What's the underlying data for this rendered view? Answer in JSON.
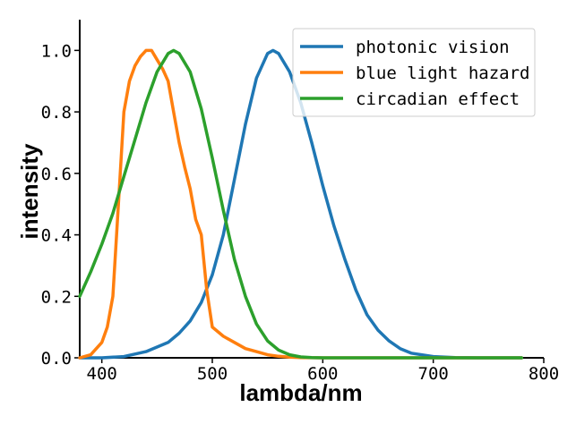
{
  "chart_data": {
    "type": "line",
    "xlabel": "lambda/nm",
    "ylabel": "intensity",
    "xlim": [
      380,
      800
    ],
    "ylim": [
      0,
      1.1
    ],
    "xticks": [
      400,
      500,
      600,
      700,
      800
    ],
    "yticks": [
      0.0,
      0.2,
      0.4,
      0.6,
      0.8,
      1.0
    ],
    "xtick_labels": [
      "400",
      "500",
      "600",
      "700",
      "800"
    ],
    "ytick_labels": [
      "0.0",
      "0.2",
      "0.4",
      "0.6",
      "0.8",
      "1.0"
    ],
    "grid": false,
    "legend_position": "top-right",
    "series": [
      {
        "name": "photonic vision",
        "color": "#1f77b4",
        "x": [
          380,
          400,
          420,
          440,
          460,
          470,
          480,
          490,
          500,
          510,
          520,
          530,
          540,
          550,
          555,
          560,
          570,
          580,
          590,
          600,
          610,
          620,
          630,
          640,
          650,
          660,
          670,
          680,
          700,
          720,
          740,
          760,
          780
        ],
        "y": [
          0.0,
          0.0,
          0.004,
          0.02,
          0.05,
          0.08,
          0.12,
          0.18,
          0.27,
          0.4,
          0.58,
          0.76,
          0.91,
          0.99,
          1.0,
          0.99,
          0.93,
          0.83,
          0.7,
          0.56,
          0.43,
          0.32,
          0.22,
          0.14,
          0.09,
          0.055,
          0.03,
          0.015,
          0.004,
          0.001,
          0.0,
          0.0,
          0.0
        ]
      },
      {
        "name": "blue light hazard",
        "color": "#ff7f0e",
        "x": [
          380,
          390,
          395,
          400,
          405,
          410,
          415,
          420,
          425,
          430,
          435,
          440,
          445,
          450,
          455,
          460,
          465,
          470,
          475,
          480,
          485,
          490,
          495,
          500,
          510,
          520,
          530,
          540,
          550,
          560,
          570,
          580,
          600,
          650,
          700,
          780
        ],
        "y": [
          0.0,
          0.01,
          0.03,
          0.05,
          0.1,
          0.2,
          0.5,
          0.8,
          0.9,
          0.95,
          0.98,
          1.0,
          1.0,
          0.97,
          0.94,
          0.9,
          0.8,
          0.7,
          0.62,
          0.55,
          0.45,
          0.4,
          0.22,
          0.1,
          0.07,
          0.05,
          0.03,
          0.02,
          0.01,
          0.005,
          0.002,
          0.001,
          0.0,
          0.0,
          0.0,
          0.0
        ]
      },
      {
        "name": "circadian effect",
        "color": "#2ca02c",
        "x": [
          380,
          390,
          400,
          410,
          420,
          430,
          440,
          450,
          460,
          465,
          470,
          480,
          490,
          500,
          510,
          520,
          530,
          540,
          550,
          560,
          570,
          580,
          590,
          600,
          620,
          650,
          700,
          780
        ],
        "y": [
          0.2,
          0.28,
          0.37,
          0.47,
          0.59,
          0.71,
          0.83,
          0.93,
          0.99,
          1.0,
          0.99,
          0.93,
          0.81,
          0.65,
          0.48,
          0.32,
          0.2,
          0.11,
          0.055,
          0.025,
          0.01,
          0.003,
          0.001,
          0.0,
          0.0,
          0.0,
          0.0,
          0.0
        ]
      }
    ]
  }
}
